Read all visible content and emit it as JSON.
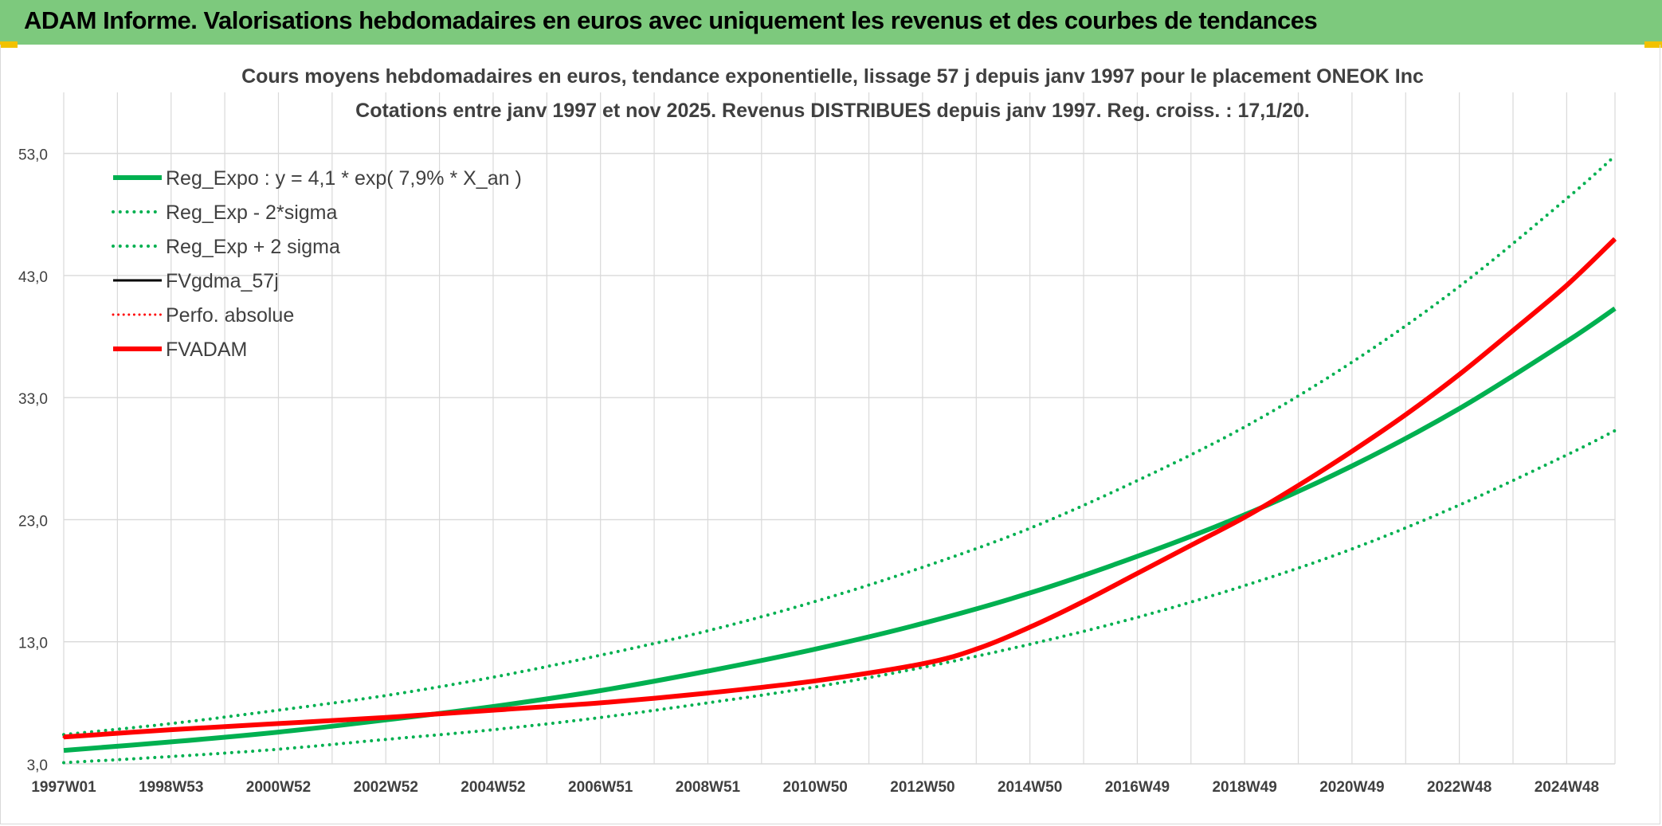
{
  "header": {
    "title": "ADAM Informe. Valorisations hebdomadaires en euros avec uniquement les revenus et des courbes de tendances"
  },
  "colors": {
    "banner": "#7dc97d",
    "green": "#00b050",
    "red": "#ff0000",
    "black": "#000000",
    "grid": "#d9d9d9",
    "text": "#404040"
  },
  "chart_data": {
    "type": "line",
    "title": "Cours moyens hebdomadaires en euros, tendance exponentielle, lissage 57 j depuis janv 1997 pour le placement ONEOK Inc",
    "subtitle": "Cotations entre janv 1997 et nov 2025. Revenus DISTRIBUES depuis janv 1997. Reg. croiss. : 17,1/20.",
    "xlabel": "",
    "ylabel": "",
    "xlim": [
      1997.0,
      2025.9
    ],
    "ylim": [
      3.0,
      58.0
    ],
    "grid": true,
    "legend_position": "top-left",
    "y_ticks": [
      {
        "value": 3,
        "label": "3,0"
      },
      {
        "value": 13,
        "label": "13,0"
      },
      {
        "value": 23,
        "label": "23,0"
      },
      {
        "value": 33,
        "label": "33,0"
      },
      {
        "value": 43,
        "label": "43,0"
      },
      {
        "value": 53,
        "label": "53,0"
      }
    ],
    "x_ticks": [
      {
        "value": 1997.0,
        "label": "1997W01"
      },
      {
        "value": 1999.0,
        "label": "1998W53"
      },
      {
        "value": 2001.0,
        "label": "2000W52"
      },
      {
        "value": 2003.0,
        "label": "2002W52"
      },
      {
        "value": 2005.0,
        "label": "2004W52"
      },
      {
        "value": 2007.0,
        "label": "2006W51"
      },
      {
        "value": 2009.0,
        "label": "2008W51"
      },
      {
        "value": 2011.0,
        "label": "2010W50"
      },
      {
        "value": 2013.0,
        "label": "2012W50"
      },
      {
        "value": 2015.0,
        "label": "2014W50"
      },
      {
        "value": 2017.0,
        "label": "2016W49"
      },
      {
        "value": 2019.0,
        "label": "2018W49"
      },
      {
        "value": 2021.0,
        "label": "2020W49"
      },
      {
        "value": 2023.0,
        "label": "2022W48"
      },
      {
        "value": 2025.0,
        "label": "2024W48"
      }
    ],
    "x_minor_step": 1,
    "series": [
      {
        "name": "Reg_Expo : y = 4,1 * exp( 7,9% *  X_an )",
        "color": "#00b050",
        "style": "solid",
        "width": 6,
        "x": [
          1997.0,
          1999.0,
          2001.0,
          2003.0,
          2005.0,
          2007.0,
          2009.0,
          2011.0,
          2013.0,
          2015.0,
          2017.0,
          2019.0,
          2021.0,
          2023.0,
          2025.0,
          2025.9
        ],
        "values": [
          4.1,
          4.8,
          5.6,
          6.6,
          7.7,
          9.0,
          10.6,
          12.4,
          14.5,
          17.0,
          20.0,
          23.4,
          27.4,
          32.1,
          37.6,
          40.3
        ]
      },
      {
        "name": "Reg_Exp - 2*sigma",
        "color": "#00b050",
        "style": "dotted",
        "width": 4,
        "x": [
          1997.0,
          1999.0,
          2001.0,
          2003.0,
          2005.0,
          2007.0,
          2009.0,
          2011.0,
          2013.0,
          2015.0,
          2017.0,
          2019.0,
          2021.0,
          2023.0,
          2025.0,
          2025.9
        ],
        "values": [
          3.1,
          3.6,
          4.2,
          5.0,
          5.8,
          6.8,
          8.0,
          9.3,
          10.9,
          12.8,
          15.0,
          17.6,
          20.6,
          24.2,
          28.3,
          30.3
        ]
      },
      {
        "name": "Reg_Exp + 2 sigma",
        "color": "#00b050",
        "style": "dotted",
        "width": 4,
        "x": [
          1997.0,
          1999.0,
          2001.0,
          2003.0,
          2005.0,
          2007.0,
          2009.0,
          2011.0,
          2013.0,
          2015.0,
          2017.0,
          2019.0,
          2021.0,
          2023.0,
          2025.0,
          2025.9
        ],
        "values": [
          5.4,
          6.3,
          7.4,
          8.6,
          10.1,
          11.9,
          13.9,
          16.3,
          19.1,
          22.3,
          26.2,
          30.6,
          35.9,
          42.1,
          49.3,
          52.8
        ]
      },
      {
        "name": "FVgdma_57j",
        "color": "#000000",
        "style": "solid",
        "width": 3,
        "x": [
          1997.0,
          1999.0,
          2001.0,
          2003.0,
          2005.0,
          2007.0,
          2009.0,
          2011.0,
          2013.0,
          2014.0,
          2015.0,
          2016.0,
          2017.0,
          2018.0,
          2019.0,
          2020.0,
          2021.0,
          2022.0,
          2023.0,
          2024.0,
          2025.0,
          2025.9
        ],
        "values": [
          5.2,
          5.8,
          6.3,
          6.8,
          7.4,
          8.0,
          8.8,
          9.8,
          11.2,
          12.4,
          14.2,
          16.3,
          18.6,
          20.9,
          23.2,
          25.8,
          28.6,
          31.6,
          34.9,
          38.5,
          42.2,
          46.0
        ]
      },
      {
        "name": "Perfo. absolue",
        "color": "#ff0000",
        "style": "dotted",
        "width": 3,
        "x": [
          1997.0,
          1999.0,
          2001.0,
          2003.0,
          2005.0,
          2007.0,
          2009.0,
          2011.0,
          2013.0,
          2014.0,
          2015.0,
          2016.0,
          2017.0,
          2018.0,
          2019.0,
          2020.0,
          2021.0,
          2022.0,
          2023.0,
          2024.0,
          2025.0,
          2025.9
        ],
        "values": [
          5.2,
          5.8,
          6.3,
          6.8,
          7.4,
          8.0,
          8.8,
          9.8,
          11.2,
          12.4,
          14.2,
          16.3,
          18.6,
          20.9,
          23.2,
          25.8,
          28.6,
          31.6,
          34.9,
          38.5,
          42.2,
          46.0
        ]
      },
      {
        "name": "FVADAM",
        "color": "#ff0000",
        "style": "solid",
        "width": 6,
        "x": [
          1997.0,
          1999.0,
          2001.0,
          2003.0,
          2005.0,
          2007.0,
          2009.0,
          2011.0,
          2013.0,
          2014.0,
          2015.0,
          2016.0,
          2017.0,
          2018.0,
          2019.0,
          2020.0,
          2021.0,
          2022.0,
          2023.0,
          2024.0,
          2025.0,
          2025.9
        ],
        "values": [
          5.2,
          5.8,
          6.3,
          6.8,
          7.4,
          8.0,
          8.8,
          9.8,
          11.2,
          12.4,
          14.2,
          16.3,
          18.6,
          20.9,
          23.2,
          25.8,
          28.6,
          31.6,
          34.9,
          38.5,
          42.2,
          46.0
        ]
      }
    ]
  }
}
